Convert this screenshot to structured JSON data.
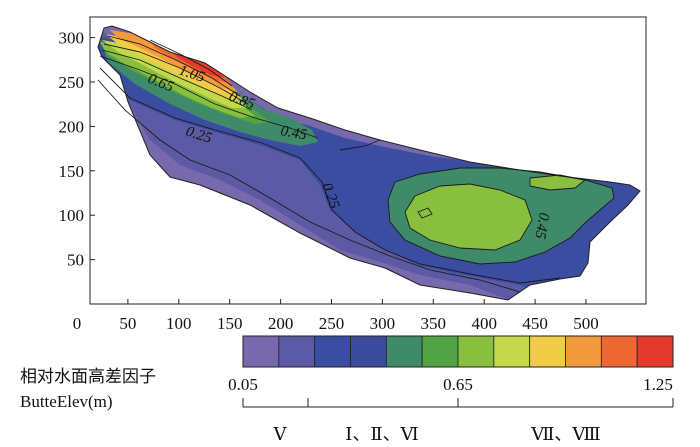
{
  "chart_data": {
    "type": "heatmap",
    "subtype": "filled-contour",
    "title": "",
    "xlabel": "",
    "ylabel": "",
    "xlim": [
      0,
      550
    ],
    "ylim": [
      0,
      320
    ],
    "x_ticks": [
      "0",
      "50",
      "100",
      "150",
      "200",
      "250",
      "300",
      "350",
      "400",
      "450",
      "500"
    ],
    "y_ticks": [
      "50",
      "100",
      "150",
      "200",
      "250",
      "300"
    ],
    "contour_labels": [
      {
        "text": "1.05",
        "x": 95,
        "y": 262
      },
      {
        "text": "0.85",
        "x": 145,
        "y": 236
      },
      {
        "text": "0.65",
        "x": 68,
        "y": 248
      },
      {
        "text": "0.45",
        "x": 200,
        "y": 197
      },
      {
        "text": "0.25",
        "x": 100,
        "y": 193
      },
      {
        "text": "0.25",
        "x": 232,
        "y": 130
      },
      {
        "text": "0.45",
        "x": 458,
        "y": 112
      }
    ],
    "colorbar": {
      "title": "相对水面高差因子",
      "subtitle": "ButteElev(m)",
      "min_label": "0.05",
      "mid_label": "0.65",
      "max_label": "1.25",
      "min": 0.05,
      "max": 1.25,
      "bins": [
        {
          "color": "#7868ac"
        },
        {
          "color": "#5c5aa4"
        },
        {
          "color": "#3b4da0"
        },
        {
          "color": "#3a4c9b"
        },
        {
          "color": "#3f8a69"
        },
        {
          "color": "#52a344"
        },
        {
          "color": "#88bf3f"
        },
        {
          "color": "#c3d94a"
        },
        {
          "color": "#f2cc47"
        },
        {
          "color": "#f39a3c"
        },
        {
          "color": "#ee6733"
        },
        {
          "color": "#e43a2b"
        }
      ]
    },
    "groups": [
      {
        "label": "Ⅴ",
        "from": 0.05,
        "to": 0.25
      },
      {
        "label": "Ⅰ、Ⅱ、Ⅵ",
        "from": 0.25,
        "to": 0.65
      },
      {
        "label": "Ⅶ、Ⅷ",
        "from": 0.65,
        "to": 1.25
      }
    ]
  }
}
